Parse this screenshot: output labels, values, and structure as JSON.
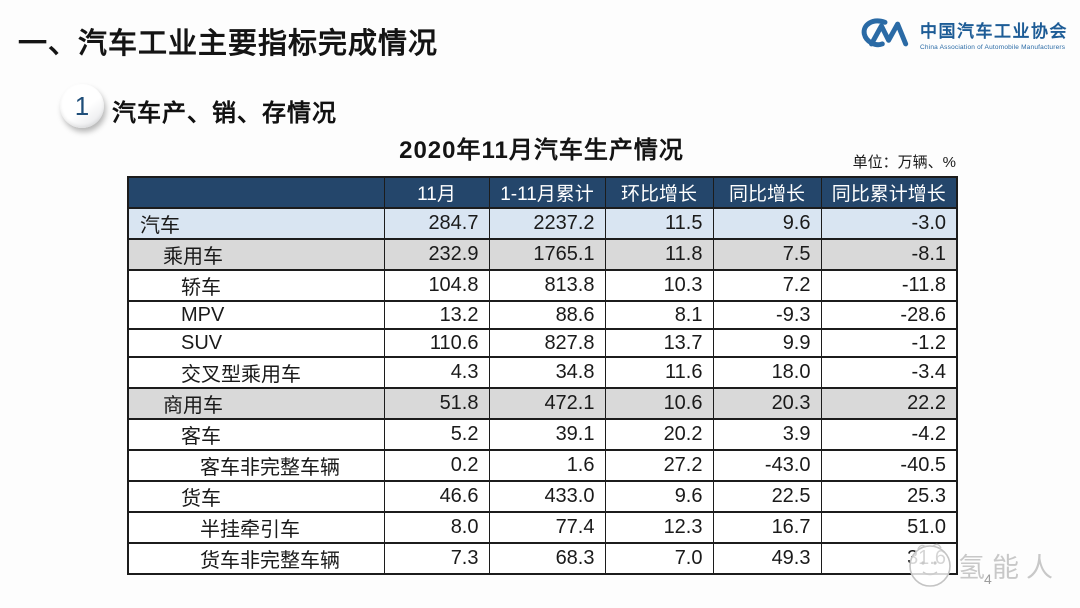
{
  "header": {
    "title": "一、汽车工业主要指标完成情况"
  },
  "logo": {
    "mark": "CM-monogram",
    "name_cn": "中国汽车工业协会",
    "name_en": "China Association of Automobile Manufacturers",
    "color": "#2a6aa5"
  },
  "section": {
    "badge": "1",
    "title": "汽车产、销、存情况"
  },
  "table": {
    "title": "2020年11月汽车生产情况",
    "unit_label": "单位：万辆、%",
    "columns": [
      "",
      "11月",
      "1-11月累计",
      "环比增长",
      "同比增长",
      "同比累计增长"
    ],
    "rows": [
      {
        "label": "汽车",
        "indent": 0,
        "band": "blue",
        "values": [
          "284.7",
          "2237.2",
          "11.5",
          "9.6",
          "-3.0"
        ]
      },
      {
        "label": "乘用车",
        "indent": 1,
        "band": "gray",
        "values": [
          "232.9",
          "1765.1",
          "11.8",
          "7.5",
          "-8.1"
        ]
      },
      {
        "label": "轿车",
        "indent": 2,
        "band": "white",
        "values": [
          "104.8",
          "813.8",
          "10.3",
          "7.2",
          "-11.8"
        ]
      },
      {
        "label": "MPV",
        "indent": 2,
        "band": "white",
        "values": [
          "13.2",
          "88.6",
          "8.1",
          "-9.3",
          "-28.6"
        ]
      },
      {
        "label": "SUV",
        "indent": 2,
        "band": "white",
        "values": [
          "110.6",
          "827.8",
          "13.7",
          "9.9",
          "-1.2"
        ]
      },
      {
        "label": "交叉型乘用车",
        "indent": 2,
        "band": "white",
        "values": [
          "4.3",
          "34.8",
          "11.6",
          "18.0",
          "-3.4"
        ]
      },
      {
        "label": "商用车",
        "indent": 1,
        "band": "gray",
        "values": [
          "51.8",
          "472.1",
          "10.6",
          "20.3",
          "22.2"
        ]
      },
      {
        "label": "客车",
        "indent": 2,
        "band": "white",
        "values": [
          "5.2",
          "39.1",
          "20.2",
          "3.9",
          "-4.2"
        ]
      },
      {
        "label": "客车非完整车辆",
        "indent": 3,
        "band": "white",
        "values": [
          "0.2",
          "1.6",
          "27.2",
          "-43.0",
          "-40.5"
        ]
      },
      {
        "label": "货车",
        "indent": 2,
        "band": "white",
        "values": [
          "46.6",
          "433.0",
          "9.6",
          "22.5",
          "25.3"
        ]
      },
      {
        "label": "半挂牵引车",
        "indent": 3,
        "band": "white",
        "values": [
          "8.0",
          "77.4",
          "12.3",
          "16.7",
          "51.0"
        ]
      },
      {
        "label": "货车非完整车辆",
        "indent": 3,
        "band": "white",
        "values": [
          "7.3",
          "68.3",
          "7.0",
          "49.3",
          "31.6"
        ]
      }
    ],
    "colors": {
      "header_bg": "#24466b",
      "header_text": "#ffffff",
      "band_blue": "#d9e5f2",
      "band_gray": "#d9d9d9"
    }
  },
  "watermark": {
    "text": "氢能人",
    "color": "#c8c8c8"
  },
  "page": {
    "number": "4"
  },
  "chart_data": {
    "type": "table",
    "title": "2020年11月汽车生产情况",
    "unit": "万辆、%",
    "columns": [
      "类别",
      "11月",
      "1-11月累计",
      "环比增长",
      "同比增长",
      "同比累计增长"
    ],
    "rows": [
      [
        "汽车",
        284.7,
        2237.2,
        11.5,
        9.6,
        -3.0
      ],
      [
        "乘用车",
        232.9,
        1765.1,
        11.8,
        7.5,
        -8.1
      ],
      [
        "轿车",
        104.8,
        813.8,
        10.3,
        7.2,
        -11.8
      ],
      [
        "MPV",
        13.2,
        88.6,
        8.1,
        -9.3,
        -28.6
      ],
      [
        "SUV",
        110.6,
        827.8,
        13.7,
        9.9,
        -1.2
      ],
      [
        "交叉型乘用车",
        4.3,
        34.8,
        11.6,
        18.0,
        -3.4
      ],
      [
        "商用车",
        51.8,
        472.1,
        10.6,
        20.3,
        22.2
      ],
      [
        "客车",
        5.2,
        39.1,
        20.2,
        3.9,
        -4.2
      ],
      [
        "客车非完整车辆",
        0.2,
        1.6,
        27.2,
        -43.0,
        -40.5
      ],
      [
        "货车",
        46.6,
        433.0,
        9.6,
        22.5,
        25.3
      ],
      [
        "半挂牵引车",
        8.0,
        77.4,
        12.3,
        16.7,
        51.0
      ],
      [
        "货车非完整车辆",
        7.3,
        68.3,
        7.0,
        49.3,
        31.6
      ]
    ]
  }
}
